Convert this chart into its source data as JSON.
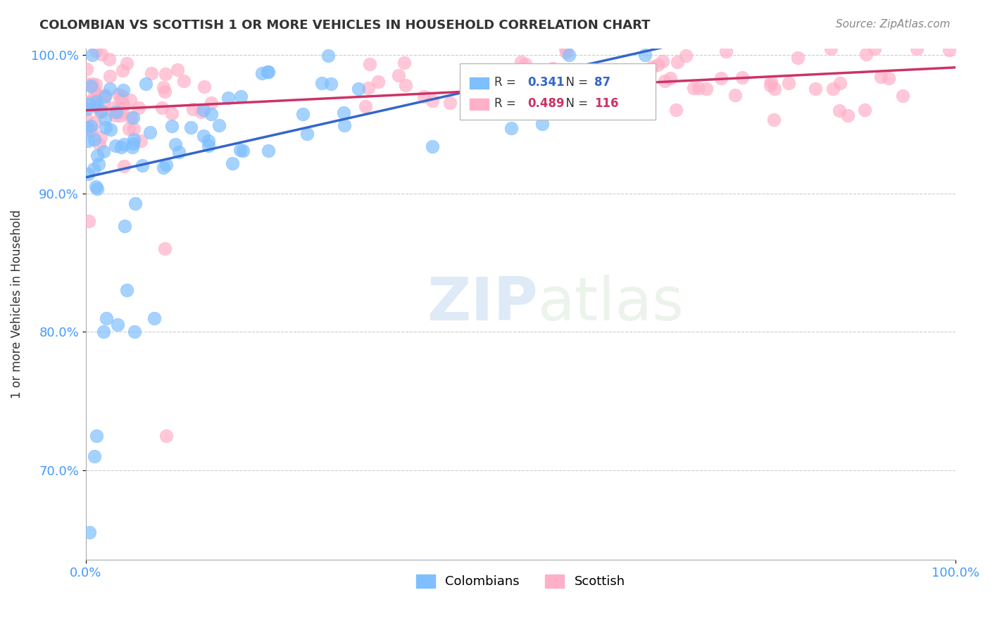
{
  "title": "COLOMBIAN VS SCOTTISH 1 OR MORE VEHICLES IN HOUSEHOLD CORRELATION CHART",
  "source": "Source: ZipAtlas.com",
  "ylabel": "1 or more Vehicles in Household",
  "xlim": [
    0.0,
    1.0
  ],
  "ylim": [
    0.635,
    1.005
  ],
  "yticks": [
    0.7,
    0.8,
    0.9,
    1.0
  ],
  "ytick_labels": [
    "70.0%",
    "80.0%",
    "90.0%",
    "100.0%"
  ],
  "r_colombian": 0.341,
  "n_colombian": 87,
  "r_scottish": 0.489,
  "n_scottish": 116,
  "colombian_color": "#7fbfff",
  "scottish_color": "#ffb0c8",
  "trend_colombian_color": "#3366cc",
  "trend_scottish_color": "#cc3366",
  "background_color": "#ffffff",
  "watermark_zip": "ZIP",
  "watermark_atlas": "atlas"
}
